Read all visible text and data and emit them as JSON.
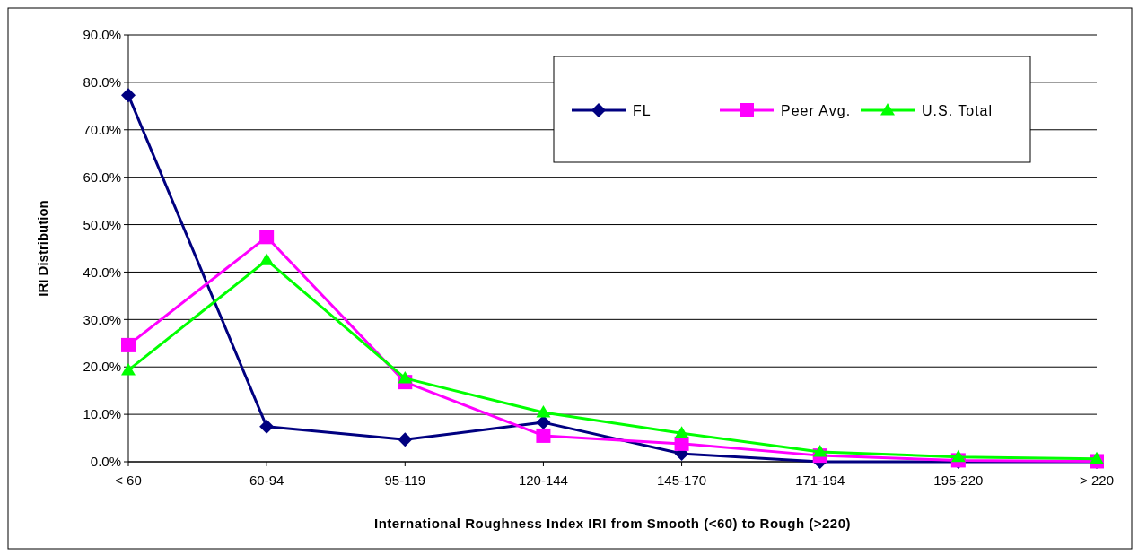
{
  "chart_data": {
    "type": "line",
    "xlabel": "International Roughness Index IRI from Smooth (<60) to Rough (>220)",
    "ylabel": "IRI Distribution",
    "categories": [
      "< 60",
      "60-94",
      "95-119",
      "120-144",
      "145-170",
      "171-194",
      "195-220",
      "> 220"
    ],
    "series": [
      {
        "name": "FL",
        "color": "#000080",
        "marker": "diamond",
        "values": [
          77.3,
          7.4,
          4.7,
          8.3,
          1.7,
          0,
          0,
          0
        ]
      },
      {
        "name": "Peer Avg.",
        "color": "#ff00ff",
        "marker": "square",
        "values": [
          24.6,
          47.4,
          16.8,
          5.5,
          3.8,
          1.3,
          0.3,
          0.1
        ]
      },
      {
        "name": "U.S. Total",
        "color": "#00ff00",
        "marker": "triangle",
        "values": [
          19.3,
          42.5,
          17.6,
          10.4,
          6.0,
          2.1,
          1.0,
          0.6
        ]
      }
    ],
    "ylim": [
      0,
      90
    ],
    "yticks": [
      {
        "value": 0,
        "label": "0.0%"
      },
      {
        "value": 10,
        "label": "10.0%"
      },
      {
        "value": 20,
        "label": "20.0%"
      },
      {
        "value": 30,
        "label": "30.0%"
      },
      {
        "value": 40,
        "label": "40.0%"
      },
      {
        "value": 50,
        "label": "50.0%"
      },
      {
        "value": 60,
        "label": "60.0%"
      },
      {
        "value": 70,
        "label": "70.0%"
      },
      {
        "value": 80,
        "label": "80.0%"
      },
      {
        "value": 90,
        "label": "90.0%"
      }
    ],
    "grid": "y",
    "legend": "top right",
    "line_style": "solid"
  }
}
